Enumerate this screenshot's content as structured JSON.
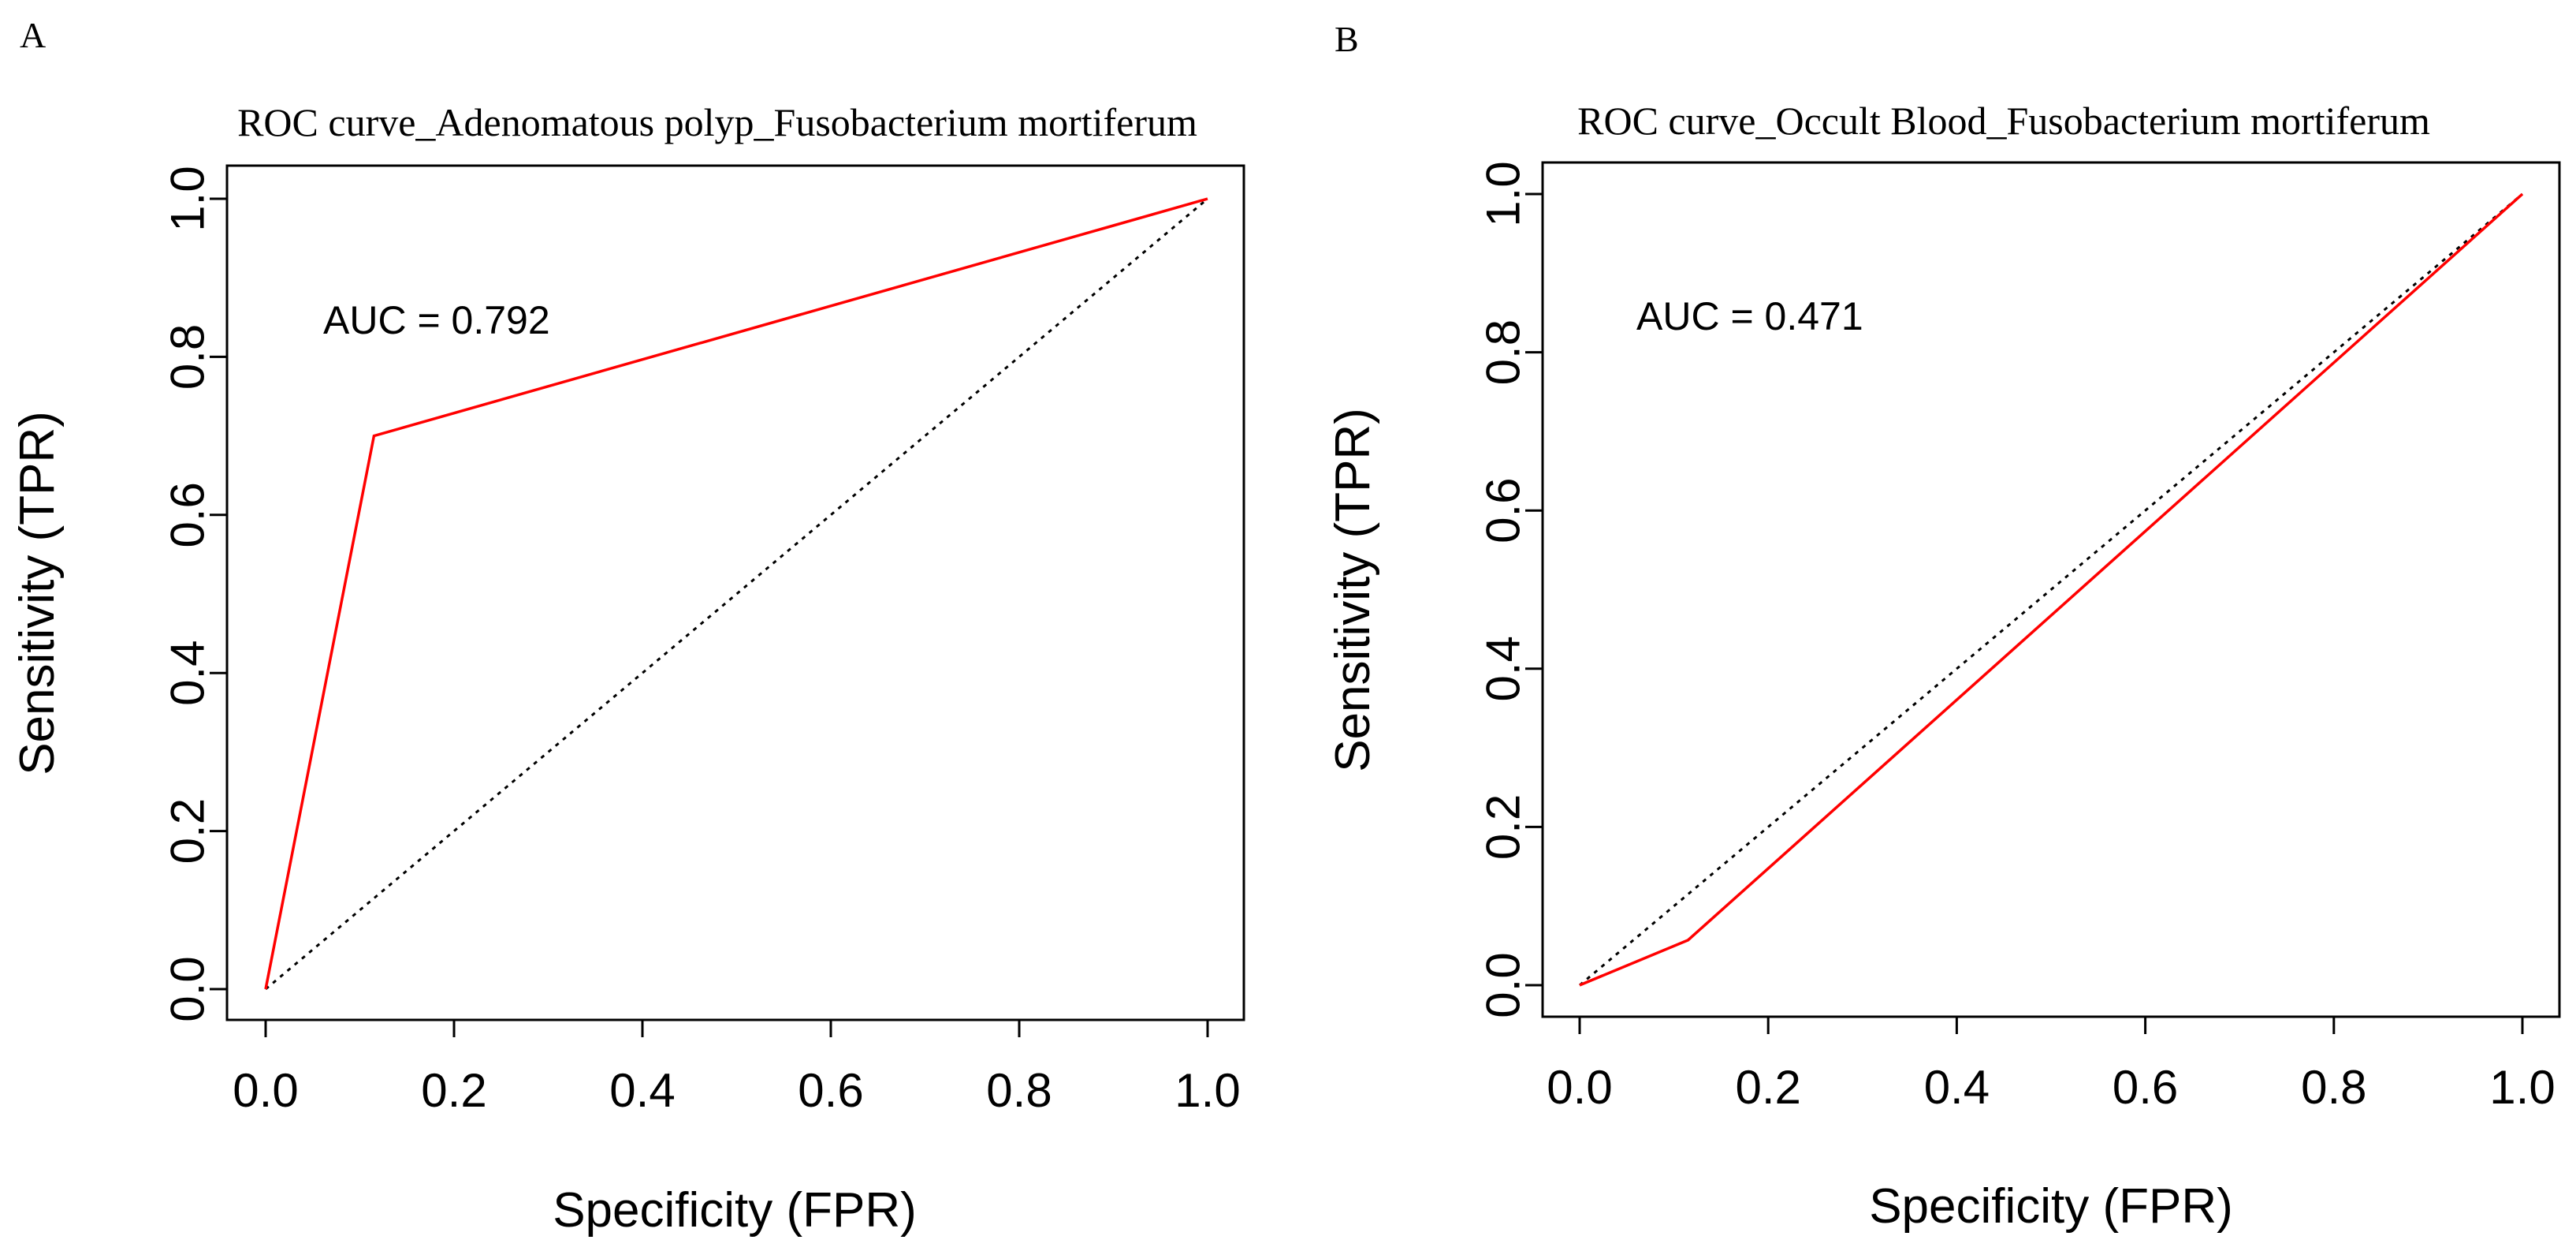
{
  "colors": {
    "roc_line": "#ff0000",
    "axes": "#000000",
    "reference": "#000000",
    "background": "#ffffff"
  },
  "chart_data": [
    {
      "panel": "A",
      "type": "line",
      "title": "ROC  curve_Adenomatous polyp_Fusobacterium mortiferum",
      "xlabel": "Specificity (FPR)",
      "ylabel": "Sensitivity (TPR)",
      "xlim": [
        0,
        1
      ],
      "ylim": [
        0,
        1
      ],
      "xticks": [
        "0.0",
        "0.2",
        "0.4",
        "0.6",
        "0.8",
        "1.0"
      ],
      "yticks": [
        "0.0",
        "0.2",
        "0.4",
        "0.6",
        "0.8",
        "1.0"
      ],
      "annotation": "AUC = 0.792",
      "grid": false,
      "series": [
        {
          "name": "ROC",
          "x": [
            0.0,
            0.115,
            1.0
          ],
          "y": [
            0.0,
            0.7,
            1.0
          ]
        }
      ],
      "reference_line": {
        "x": [
          0,
          1
        ],
        "y": [
          0,
          1
        ]
      }
    },
    {
      "panel": "B",
      "type": "line",
      "title": "ROC  curve_Occult Blood_Fusobacterium mortiferum",
      "xlabel": "Specificity (FPR)",
      "ylabel": "Sensitivity (TPR)",
      "xlim": [
        0,
        1
      ],
      "ylim": [
        0,
        1
      ],
      "xticks": [
        "0.0",
        "0.2",
        "0.4",
        "0.6",
        "0.8",
        "1.0"
      ],
      "yticks": [
        "0.0",
        "0.2",
        "0.4",
        "0.6",
        "0.8",
        "1.0"
      ],
      "annotation": "AUC = 0.471",
      "grid": false,
      "series": [
        {
          "name": "ROC",
          "x": [
            0.0,
            0.115,
            1.0
          ],
          "y": [
            0.0,
            0.057,
            1.0
          ]
        }
      ],
      "reference_line": {
        "x": [
          0,
          1
        ],
        "y": [
          0,
          1
        ]
      }
    }
  ]
}
